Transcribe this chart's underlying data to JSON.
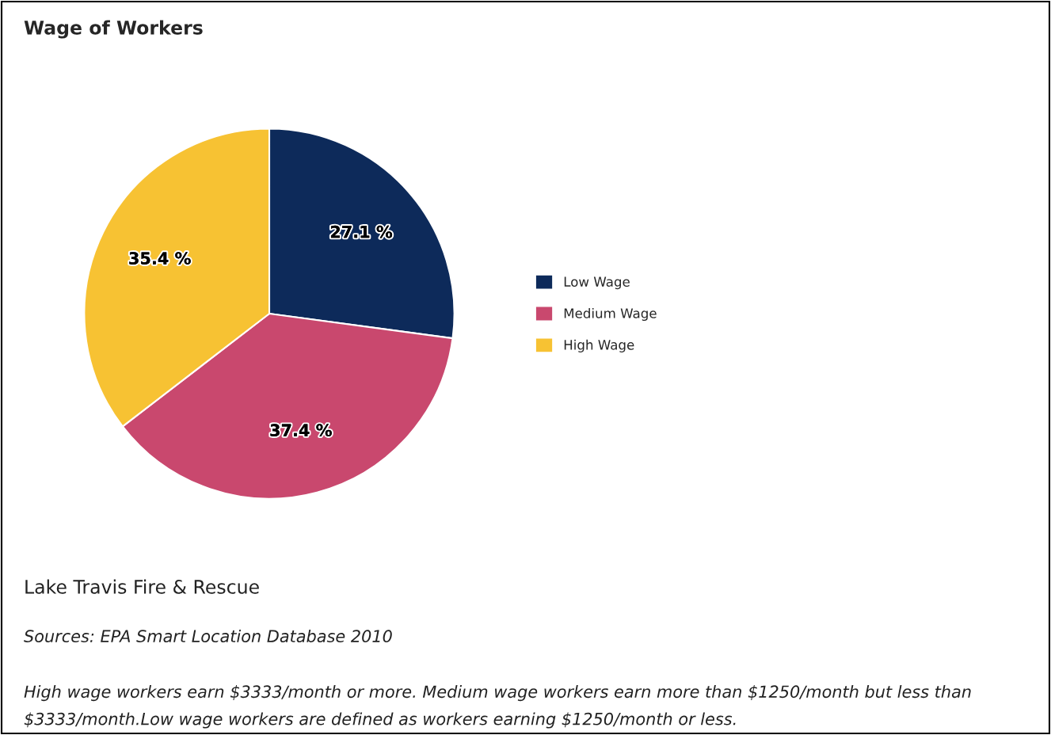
{
  "chart_data": {
    "type": "pie",
    "title": "Wage of Workers",
    "categories": [
      "Low Wage",
      "Medium Wage",
      "High Wage"
    ],
    "values": [
      27.1,
      37.4,
      35.4
    ],
    "colors": [
      "#0d2a5a",
      "#c9486e",
      "#f7c233"
    ],
    "value_labels": [
      "27.1 %",
      "37.4 %",
      "35.4 %"
    ],
    "legend": "right",
    "annotations": [
      "Lake Travis Fire & Rescue",
      "Sources: EPA Smart Location Database 2010",
      "High wage workers earn $3333/month or more. Medium wage workers earn more than $1250/month but less than $3333/month.Low wage workers are defined as workers earning $1250/month or less."
    ]
  }
}
